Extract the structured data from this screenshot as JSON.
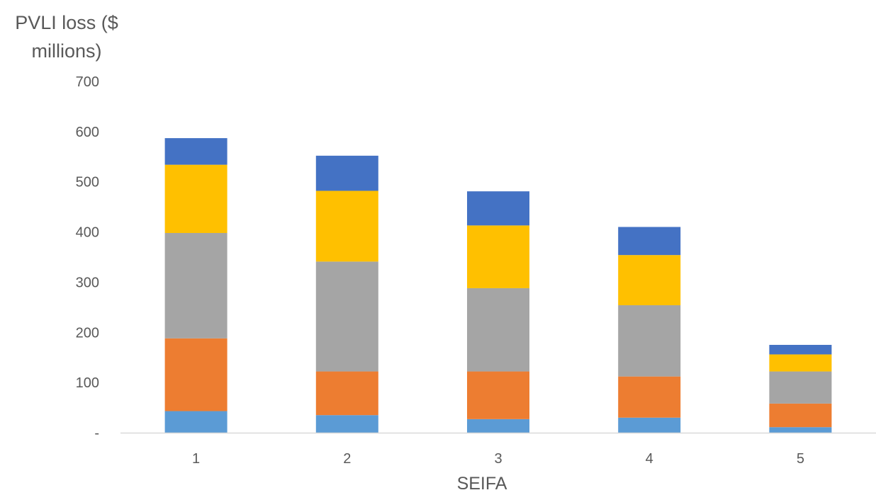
{
  "chart_data": {
    "type": "bar",
    "stacked": true,
    "categories": [
      "1",
      "2",
      "3",
      "4",
      "5"
    ],
    "series": [
      {
        "color": "#5B9BD5",
        "values": [
          43,
          35,
          27,
          30,
          11
        ]
      },
      {
        "color": "#ED7D31",
        "values": [
          145,
          87,
          95,
          82,
          47
        ]
      },
      {
        "color": "#A5A5A5",
        "values": [
          210,
          219,
          166,
          142,
          64
        ]
      },
      {
        "color": "#FFC000",
        "values": [
          136,
          141,
          125,
          100,
          34
        ]
      },
      {
        "color": "#4472C4",
        "values": [
          53,
          70,
          68,
          56,
          19
        ]
      }
    ],
    "title": "",
    "xlabel": "SEIFA",
    "ylabel": "PVLI loss ($ millions)",
    "ylabel_lines": [
      "PVLI loss ($",
      "millions)"
    ],
    "ylim": [
      0,
      700
    ],
    "yticks": [
      0,
      100,
      200,
      300,
      400,
      500,
      600,
      700
    ],
    "ytick_labels": [
      "-",
      "100",
      "200",
      "300",
      "400",
      "500",
      "600",
      "700"
    ],
    "grid": false,
    "legend": "none"
  }
}
